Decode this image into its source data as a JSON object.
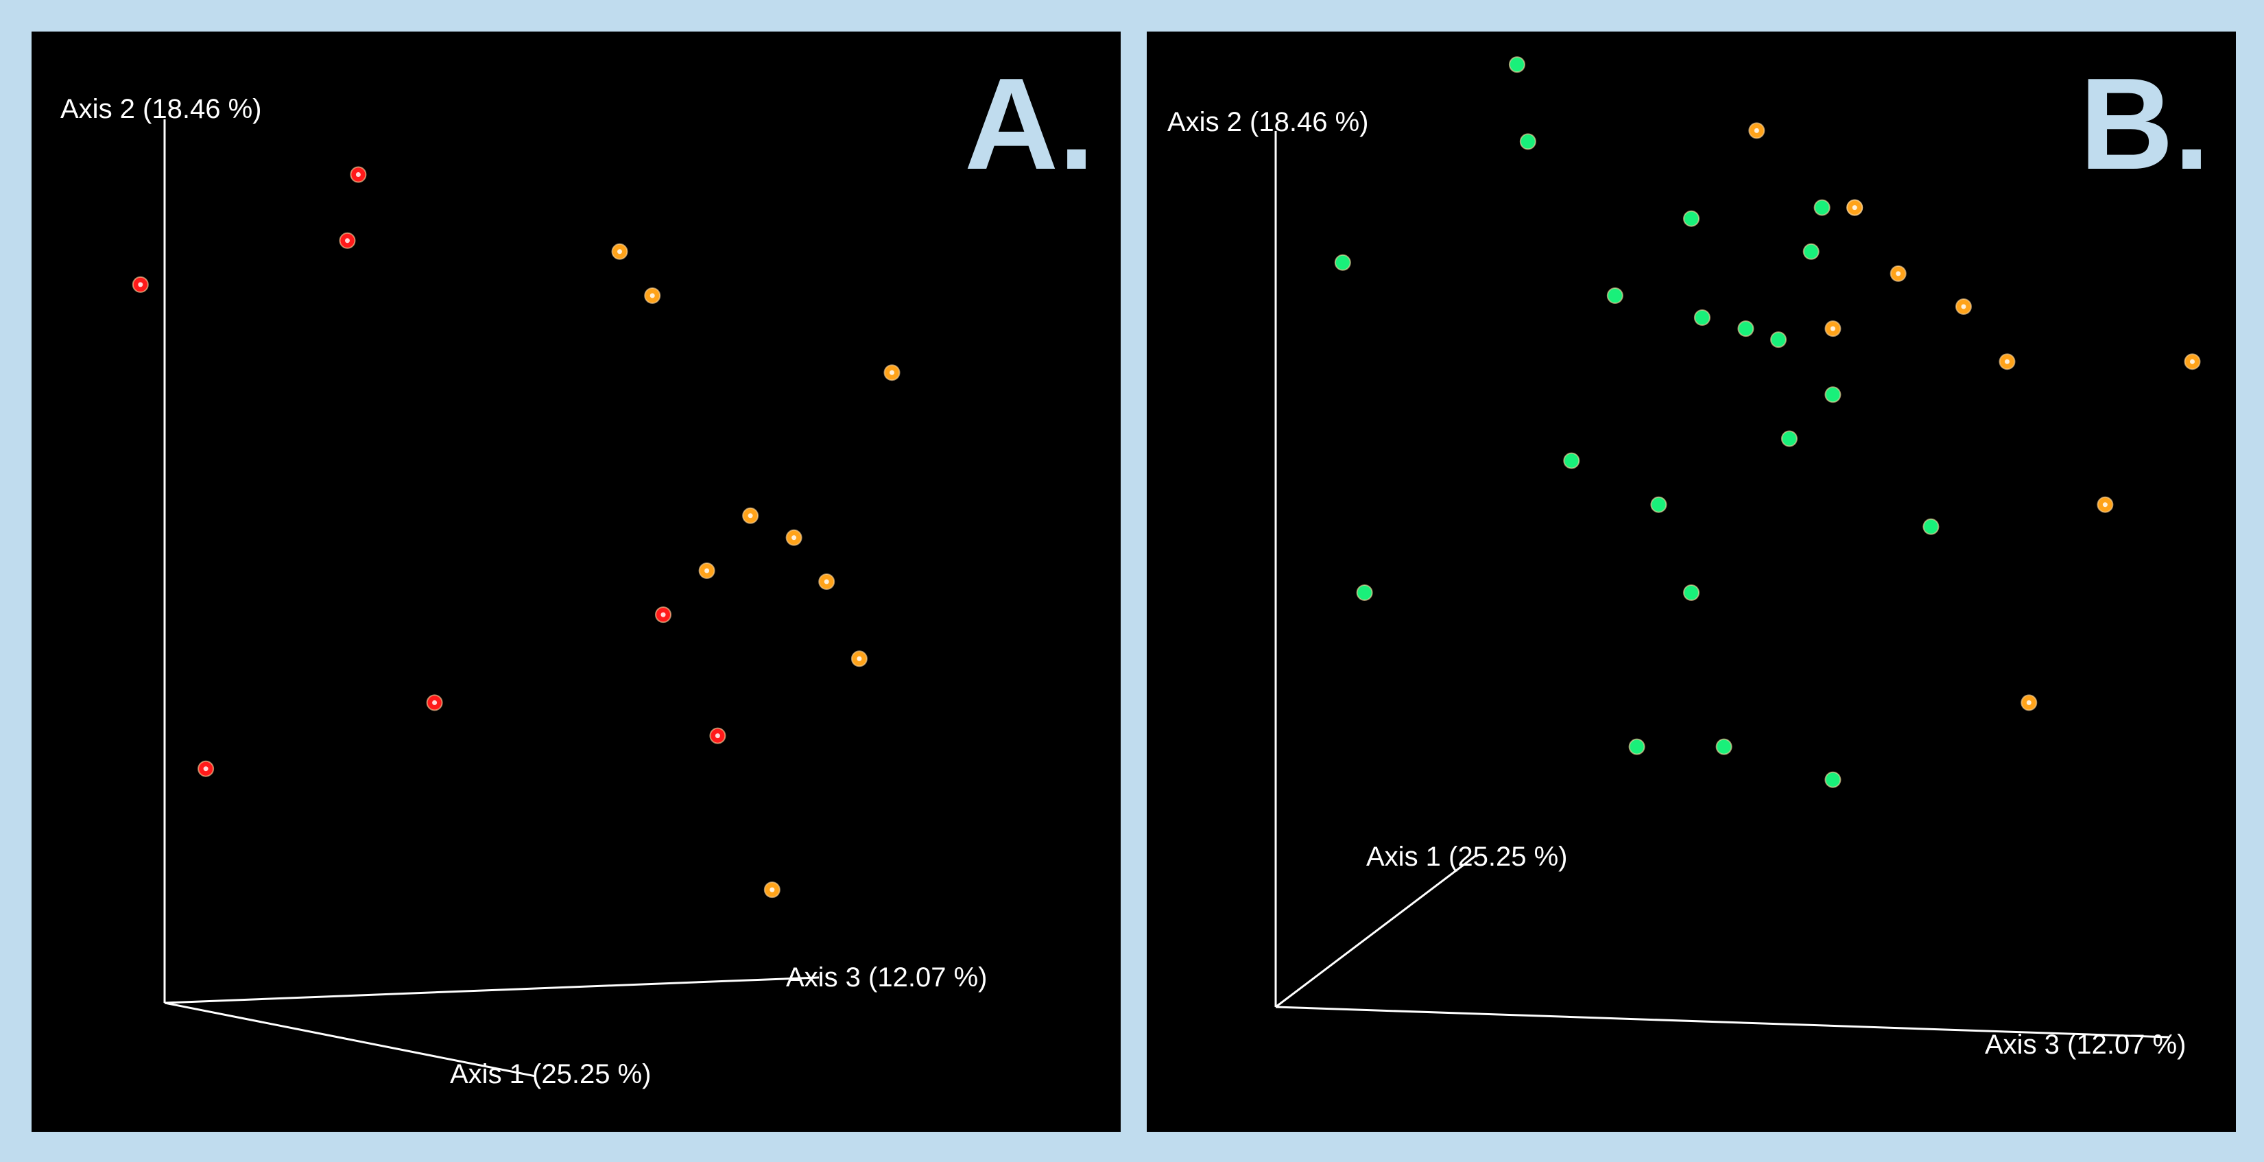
{
  "colors": {
    "frame": "#c0dcee",
    "background": "#000000",
    "axis": "#ffffff",
    "red": "#ff1a1a",
    "orange": "#ffa31a",
    "green": "#19f07a"
  },
  "chart_data": [
    {
      "type": "scatter",
      "panel_label": "A.",
      "axis_labels": {
        "axis1": "Axis 1 (25.25 %)",
        "axis2": "Axis 2 (18.46 %)",
        "axis3": "Axis 3 (12.07 %)"
      },
      "series": [
        {
          "color": "red",
          "points": [
            [
              0.1,
              0.77
            ],
            [
              0.3,
              0.87
            ],
            [
              0.29,
              0.81
            ],
            [
              0.16,
              0.33
            ],
            [
              0.37,
              0.39
            ],
            [
              0.58,
              0.47
            ],
            [
              0.63,
              0.36
            ]
          ]
        },
        {
          "color": "orange",
          "points": [
            [
              0.54,
              0.8
            ],
            [
              0.57,
              0.76
            ],
            [
              0.79,
              0.69
            ],
            [
              0.62,
              0.51
            ],
            [
              0.66,
              0.56
            ],
            [
              0.7,
              0.54
            ],
            [
              0.73,
              0.5
            ],
            [
              0.76,
              0.43
            ],
            [
              0.68,
              0.22
            ]
          ]
        }
      ]
    },
    {
      "type": "scatter",
      "panel_label": "B.",
      "axis_labels": {
        "axis1": "Axis 1 (25.25 %)",
        "axis2": "Axis 2 (18.46 %)",
        "axis3": "Axis 3 (12.07 %)"
      },
      "series": [
        {
          "color": "green",
          "points": [
            [
              0.34,
              0.97
            ],
            [
              0.35,
              0.9
            ],
            [
              0.18,
              0.79
            ],
            [
              0.43,
              0.76
            ],
            [
              0.5,
              0.83
            ],
            [
              0.51,
              0.74
            ],
            [
              0.55,
              0.73
            ],
            [
              0.58,
              0.72
            ],
            [
              0.61,
              0.8
            ],
            [
              0.62,
              0.84
            ],
            [
              0.65,
              0.84
            ],
            [
              0.63,
              0.67
            ],
            [
              0.59,
              0.63
            ],
            [
              0.39,
              0.61
            ],
            [
              0.47,
              0.57
            ],
            [
              0.72,
              0.55
            ],
            [
              0.2,
              0.49
            ],
            [
              0.5,
              0.49
            ],
            [
              0.45,
              0.35
            ],
            [
              0.53,
              0.35
            ],
            [
              0.63,
              0.32
            ]
          ]
        },
        {
          "color": "orange",
          "points": [
            [
              0.56,
              0.91
            ],
            [
              0.65,
              0.84
            ],
            [
              0.69,
              0.78
            ],
            [
              0.63,
              0.73
            ],
            [
              0.75,
              0.75
            ],
            [
              0.79,
              0.7
            ],
            [
              0.96,
              0.7
            ],
            [
              0.88,
              0.57
            ],
            [
              0.81,
              0.39
            ]
          ]
        }
      ]
    }
  ]
}
